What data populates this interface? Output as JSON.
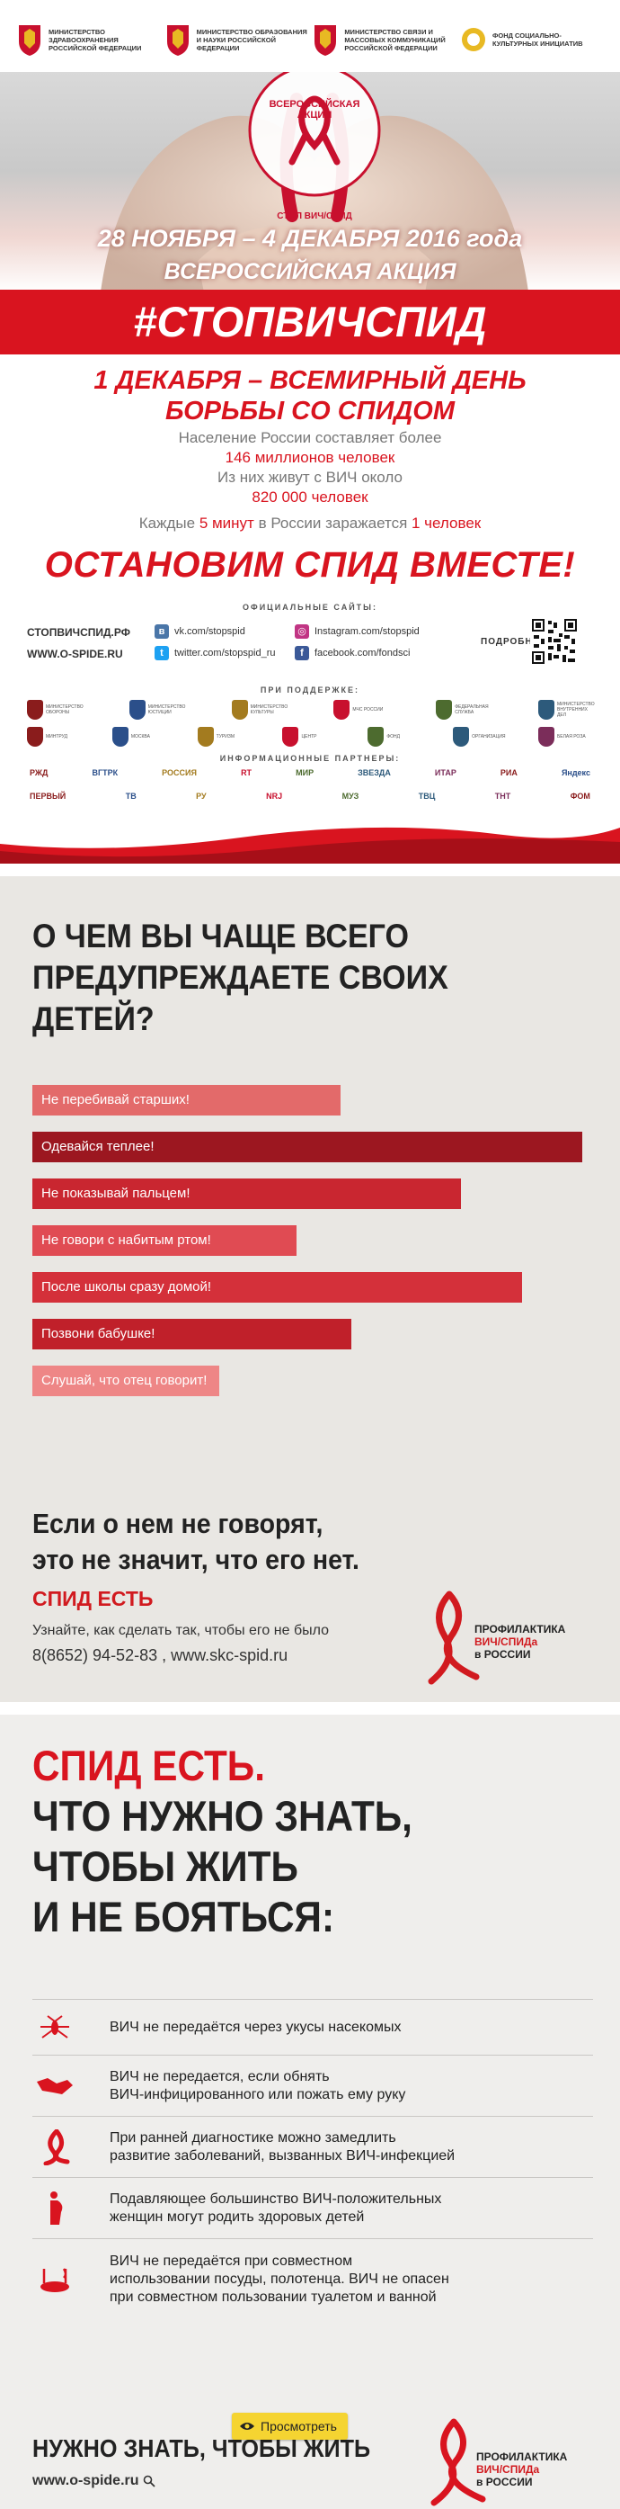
{
  "poster1": {
    "ministries": [
      {
        "name": "МИНИСТЕРСТВО ЗДРАВООХРАНЕНИЯ РОССИЙСКОЙ ФЕДЕРАЦИИ"
      },
      {
        "name": "МИНИСТЕРСТВО ОБРАЗОВАНИЯ И НАУКИ РОССИЙСКОЙ ФЕДЕРАЦИИ"
      },
      {
        "name": "МИНИСТЕРСТВО СВЯЗИ И МАССОВЫХ КОММУНИКАЦИЙ РОССИЙСКОЙ ФЕДЕРАЦИИ"
      },
      {
        "name": "ФОНД СОЦИАЛЬНО-КУЛЬТУРНЫХ ИНИЦИАТИВ"
      }
    ],
    "badge_top": "ВСЕРОССИЙСКАЯ АКЦИЯ",
    "badge_bottom": "СТОП ВИЧ/СПИД",
    "dates": "28 НОЯБРЯ – 4 ДЕКАБРЯ 2016 года",
    "campaign": "ВСЕРОССИЙСКАЯ АКЦИЯ",
    "hashtag": "#СТОПВИЧСПИД",
    "world_day_1": "1 ДЕКАБРЯ – ВСЕМИРНЫЙ ДЕНЬ",
    "world_day_2": "БОРЬБЫ СО СПИДОМ",
    "stat1": "Население России составляет более",
    "stat2": "146 миллионов человек",
    "stat3": "Из них живут с ВИЧ около",
    "stat4": "820 000 человек",
    "stat5_a": "Каждые ",
    "stat5_b": "5 минут",
    "stat5_c": " в России заражается ",
    "stat5_d": "1 человек",
    "slogan": "ОСТАНОВИМ СПИД ВМЕСТЕ!",
    "sites_title": "ОФИЦИАЛЬНЫЕ САЙТЫ:",
    "site_main": "СТОПВИЧСПИД.РФ",
    "site_alt": "WWW.O-SPIDE.RU",
    "site_vk": "vk.com/stopspid",
    "site_twitter": "twitter.com/stopspid_ru",
    "site_instagram": "Instagram.com/stopspid",
    "site_facebook": "facebook.com/fondsci",
    "more": "ПОДРОБНЕЕ",
    "support_title": "ПРИ ПОДДЕРЖКЕ:",
    "partners_title": "ИНФОРМАЦИОННЫЕ ПАРТНЕРЫ:",
    "support_row1": [
      "МИНИСТЕРСТВО ОБОРОНЫ",
      "МИНИСТЕРСТВО ЮСТИЦИИ",
      "МИНИСТЕРСТВО КУЛЬТУРЫ",
      "МЧС РОССИИ",
      "ФЕДЕРАЛЬНАЯ СЛУЖБА",
      "МИНИСТЕРСТВО ВНУТРЕННИХ ДЕЛ"
    ],
    "support_row2": [
      "МИНТРУД",
      "МОСКВА",
      "ТУРИЗМ",
      "ЦЕНТР",
      "ФОНД",
      "ОРГАНИЗАЦИЯ",
      "БЕЛАЯ РОЗА"
    ],
    "media_row1": [
      "РЖД",
      "ВГТРК",
      "РОССИЯ",
      "RT",
      "МИР",
      "ЗВЕЗДА",
      "ИТАР",
      "РИА",
      "Яндекс"
    ],
    "media_row2": [
      "ПЕРВЫЙ",
      "ТВ",
      "РУ",
      "NRJ",
      "МУЗ",
      "ТВЦ",
      "ТНТ",
      "ФОМ"
    ]
  },
  "poster2": {
    "title_1": "О ЧЕМ ВЫ ЧАЩЕ ВСЕГО",
    "title_2": "ПРЕДУПРЕЖДАЕТЕ СВОИХ ДЕТЕЙ?",
    "bars": [
      {
        "label": "Не перебивай старших!",
        "value": 0.56,
        "color": "#e36a6a"
      },
      {
        "label": "Одевайся теплее!",
        "value": 1.0,
        "color": "#9c1720"
      },
      {
        "label": "Не показывай пальцем!",
        "value": 0.78,
        "color": "#c92630"
      },
      {
        "label": "Не говори с набитым ртом!",
        "value": 0.48,
        "color": "#e04b53"
      },
      {
        "label": "После школы сразу домой!",
        "value": 0.89,
        "color": "#d4303a"
      },
      {
        "label": "Позвони бабушке!",
        "value": 0.58,
        "color": "#c0202a"
      },
      {
        "label": "Слушай, что отец говорит!",
        "value": 0.34,
        "color": "#ee8686"
      }
    ],
    "answer_1": "Если о нем не говорят,",
    "answer_2": "это не значит, что его нет.",
    "answer_3": "СПИД ЕСТЬ",
    "learn": "Узнайте, как сделать так, чтобы его не было",
    "phone_line": "8(8652) 94-52-83 ,   www.skc-spid.ru",
    "logo_1": "ПРОФИЛАКТИКА",
    "logo_2": "ВИЧ/СПИДа",
    "logo_3": "в РОССИИ"
  },
  "poster3": {
    "title_1": "СПИД ЕСТЬ.",
    "title_2": "ЧТО НУЖНО ЗНАТЬ,",
    "title_3": "ЧТОБЫ ЖИТЬ",
    "title_4": "И НЕ БОЯТЬСЯ:",
    "facts": [
      {
        "icon": "mosquito-icon",
        "lines": [
          "ВИЧ не передаётся через укусы насекомых"
        ]
      },
      {
        "icon": "handshake-icon",
        "lines": [
          "ВИЧ не передается, если обнять",
          "ВИЧ-инфицированного или пожать ему руку"
        ]
      },
      {
        "icon": "ribbon-icon",
        "lines": [
          "При ранней диагностике можно замедлить",
          "развитие заболеваний, вызванных ВИЧ-инфекцией"
        ]
      },
      {
        "icon": "pregnant-woman-icon",
        "lines": [
          "Подавляющее большинство ВИЧ-положительных",
          "женщин могут родить здоровых детей"
        ]
      },
      {
        "icon": "dishes-icon",
        "lines": [
          "ВИЧ не передаётся при совместном",
          "использовании посуды, полотенца. ВИЧ не опасен",
          "при совместном пользовании туалетом и ванной"
        ]
      }
    ],
    "need_know": "НУЖНО ЗНАТЬ, ЧТОБЫ ЖИТЬ",
    "site": "www.o-spide.ru",
    "view_button": "Просмотреть",
    "logo_1": "ПРОФИЛАКТИКА",
    "logo_2": "ВИЧ/СПИДа",
    "logo_3": "в РОССИИ"
  },
  "colors": {
    "red": "#d9141f",
    "dark_red": "#9c1720",
    "button_yellow": "#f5d431"
  }
}
